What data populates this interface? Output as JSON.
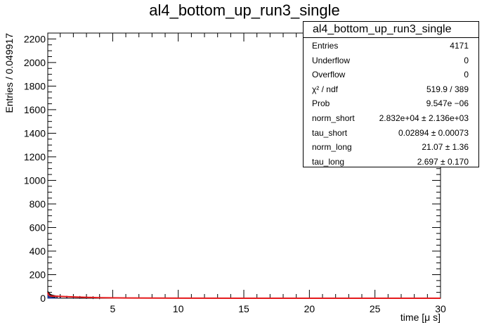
{
  "title": "al4_bottom_up_run3_single",
  "chart_data": {
    "type": "histogram",
    "title": "al4_bottom_up_run3_single",
    "xlabel": "time [μ s]",
    "ylabel": "Entries / 0.049917",
    "xlim": [
      0.05,
      30
    ],
    "ylim": [
      0,
      2250
    ],
    "xticks": [
      5,
      10,
      15,
      20,
      25,
      30
    ],
    "yticks": [
      0,
      200,
      400,
      600,
      800,
      1000,
      1200,
      1400,
      1600,
      1800,
      2000,
      2200
    ],
    "bin_width": 0.049917,
    "histogram": {
      "x": [
        0.08,
        0.13,
        0.18,
        0.23,
        0.28,
        0.33,
        0.38,
        0.43,
        0.48,
        0.53,
        0.6,
        0.75,
        1.0,
        1.5,
        2.0,
        2.5,
        3.0,
        3.5,
        4.0
      ],
      "values": [
        48,
        40,
        33,
        28,
        24,
        21,
        19,
        17,
        16,
        15,
        14,
        12,
        11,
        9,
        8,
        7,
        6,
        5,
        4
      ]
    },
    "fit": {
      "function": "norm_short*exp(-t/tau_short) + norm_long*exp(-t/tau_long)",
      "color": "#e41a1c",
      "x": [
        0.05,
        0.1,
        0.2,
        0.3,
        0.5,
        1,
        2,
        4,
        6,
        10,
        15,
        20,
        25,
        30
      ],
      "values": [
        48,
        31,
        20.9,
        18.9,
        17.6,
        15.8,
        10.9,
        4.6,
        2.3,
        0.6,
        0.1,
        0.0,
        0.0,
        0.0
      ]
    },
    "grid": false,
    "legend": "top-right"
  },
  "stats": {
    "title": "al4_bottom_up_run3_single",
    "rows": [
      {
        "label": "Entries",
        "value": "4171"
      },
      {
        "label": "Underflow",
        "value": "0"
      },
      {
        "label": "Overflow",
        "value": "0"
      },
      {
        "label": "χ² / ndf",
        "value": "519.9 / 389"
      },
      {
        "label": "Prob",
        "value": "9.547e −06"
      },
      {
        "label": "norm_short",
        "value": "2.832e+04  ± 2.136e+03"
      },
      {
        "label": "tau_short",
        "value": "0.02894  ± 0.00073"
      },
      {
        "label": "norm_long",
        "value": "21.07  ± 1.36"
      },
      {
        "label": "tau_long",
        "value": "2.697  ± 0.170"
      }
    ]
  }
}
